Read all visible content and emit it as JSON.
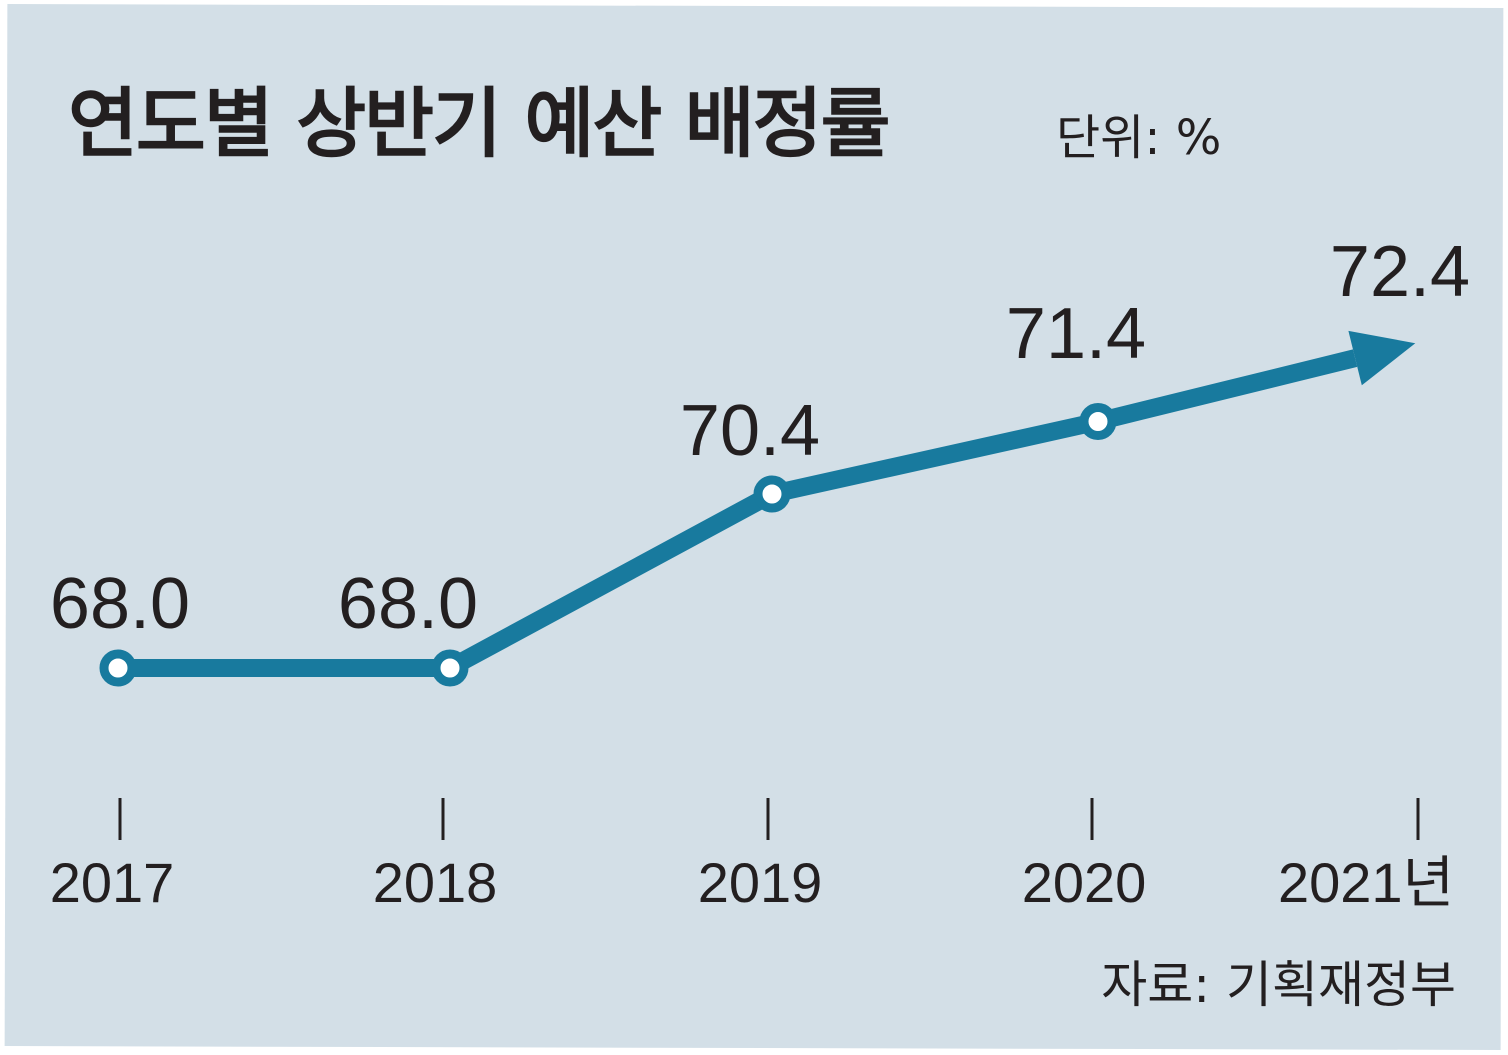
{
  "title": "연도별 상반기 예산 배정률",
  "unit": "단위: %",
  "source": "자료: 기획재정부",
  "colors": {
    "background": "#d3dfe7",
    "line": "#187a9e",
    "text": "#231f20"
  },
  "chart_data": {
    "type": "line",
    "title": "연도별 상반기 예산 배정률",
    "unit": "단위: %",
    "categories": [
      "2017",
      "2018",
      "2019",
      "2020",
      "2021년"
    ],
    "series": [
      {
        "values": [
          68.0,
          68.0,
          70.4,
          71.4,
          72.4
        ]
      }
    ],
    "data_labels": [
      "68.0",
      "68.0",
      "70.4",
      "71.4",
      "72.4"
    ],
    "last_point_marker": "arrow",
    "grid": false,
    "legend": "none"
  }
}
